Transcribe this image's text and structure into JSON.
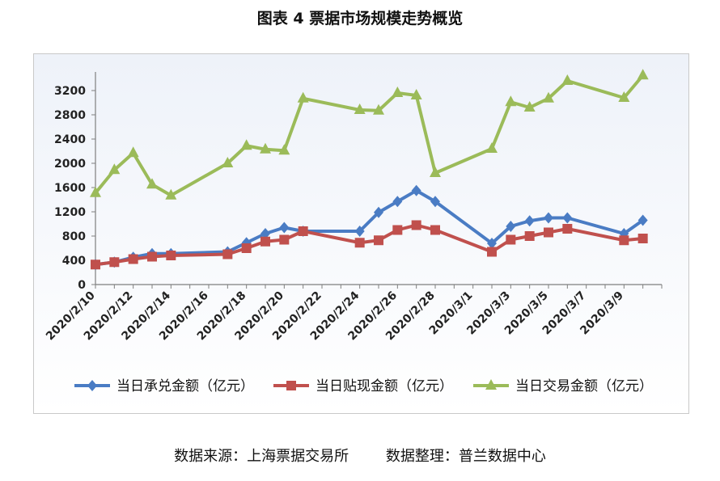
{
  "title": "图表 4  票据市场规模走势概览",
  "source": "数据来源：上海票据交易所        数据整理：普兰数据中心",
  "chart_data": {
    "type": "line",
    "title": "图表 4  票据市场规模走势概览",
    "xlabel": "",
    "ylabel": "",
    "ylim": [
      0,
      3200
    ],
    "yticks": [
      0,
      400,
      800,
      1200,
      1600,
      2000,
      2400,
      2800,
      3200
    ],
    "xticks": [
      "2020/2/10",
      "2020/2/12",
      "2020/2/14",
      "2020/2/16",
      "2020/2/18",
      "2020/2/20",
      "2020/2/22",
      "2020/2/24",
      "2020/2/26",
      "2020/2/28",
      "2020/3/1",
      "2020/3/3",
      "2020/3/5",
      "2020/3/7",
      "2020/3/9"
    ],
    "x": [
      "2020/2/10",
      "2020/2/11",
      "2020/2/12",
      "2020/2/13",
      "2020/2/14",
      "2020/2/17",
      "2020/2/18",
      "2020/2/19",
      "2020/2/20",
      "2020/2/21",
      "2020/2/24",
      "2020/2/25",
      "2020/2/26",
      "2020/2/27",
      "2020/2/28",
      "2020/3/2",
      "2020/3/3",
      "2020/3/4",
      "2020/3/5",
      "2020/3/6",
      "2020/3/9",
      "2020/3/10"
    ],
    "series": [
      {
        "name": "当日承兑金额（亿元）",
        "color": "#4a7cc4",
        "marker": "diamond",
        "values": [
          330,
          370,
          450,
          510,
          510,
          540,
          690,
          840,
          940,
          880,
          880,
          1190,
          1370,
          1550,
          1370,
          680,
          960,
          1050,
          1100,
          1100,
          840,
          1060
        ]
      },
      {
        "name": "当日贴现金额（亿元）",
        "color": "#c0504d",
        "marker": "square",
        "values": [
          330,
          370,
          420,
          460,
          480,
          500,
          600,
          710,
          740,
          880,
          690,
          730,
          900,
          980,
          900,
          540,
          740,
          800,
          860,
          920,
          730,
          760
        ]
      },
      {
        "name": "当日交易金额（亿元）",
        "color": "#9bbb59",
        "marker": "triangle",
        "values": [
          1510,
          1890,
          2170,
          1650,
          1470,
          2000,
          2290,
          2230,
          2210,
          3070,
          2880,
          2870,
          3160,
          3120,
          1840,
          2240,
          3010,
          2920,
          3070,
          3360,
          3080,
          3450
        ]
      }
    ],
    "legend": "bottom",
    "grid": false
  }
}
